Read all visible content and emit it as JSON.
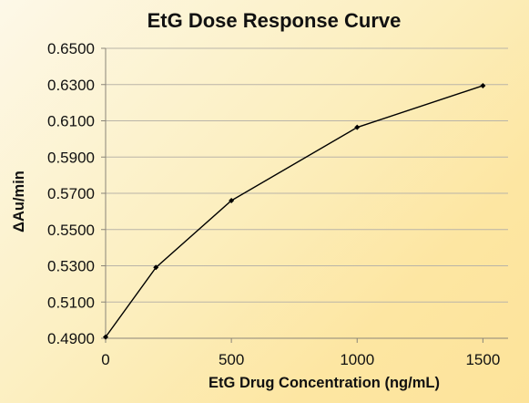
{
  "chart_data": {
    "type": "line",
    "title": "EtG Dose Response Curve",
    "xlabel": "EtG Drug Concentration (ng/mL)",
    "ylabel": "ΔAu/min",
    "x": [
      0,
      200,
      500,
      1000,
      1500
    ],
    "series": [
      {
        "values": [
          0.4907,
          0.5291,
          0.566,
          0.6064,
          0.6294
        ]
      }
    ],
    "xlim": [
      0,
      1600
    ],
    "ylim": [
      0.49,
      0.65
    ],
    "xticks": [
      0,
      500,
      1000,
      1500
    ],
    "xtick_labels": [
      "0",
      "500",
      "1000",
      "1500"
    ],
    "yticks": [
      0.49,
      0.51,
      0.53,
      0.55,
      0.57,
      0.59,
      0.61,
      0.63,
      0.65
    ],
    "ytick_labels": [
      "0.4900",
      "0.5100",
      "0.5300",
      "0.5500",
      "0.5700",
      "0.5900",
      "0.6100",
      "0.6300",
      "0.6500"
    ],
    "grid": "horizontal",
    "legend": "none",
    "colors": {
      "line": "#000000",
      "gridline": "#b9b4a8",
      "background_start": "#fdf8e8",
      "background_end": "#fde39a"
    }
  }
}
